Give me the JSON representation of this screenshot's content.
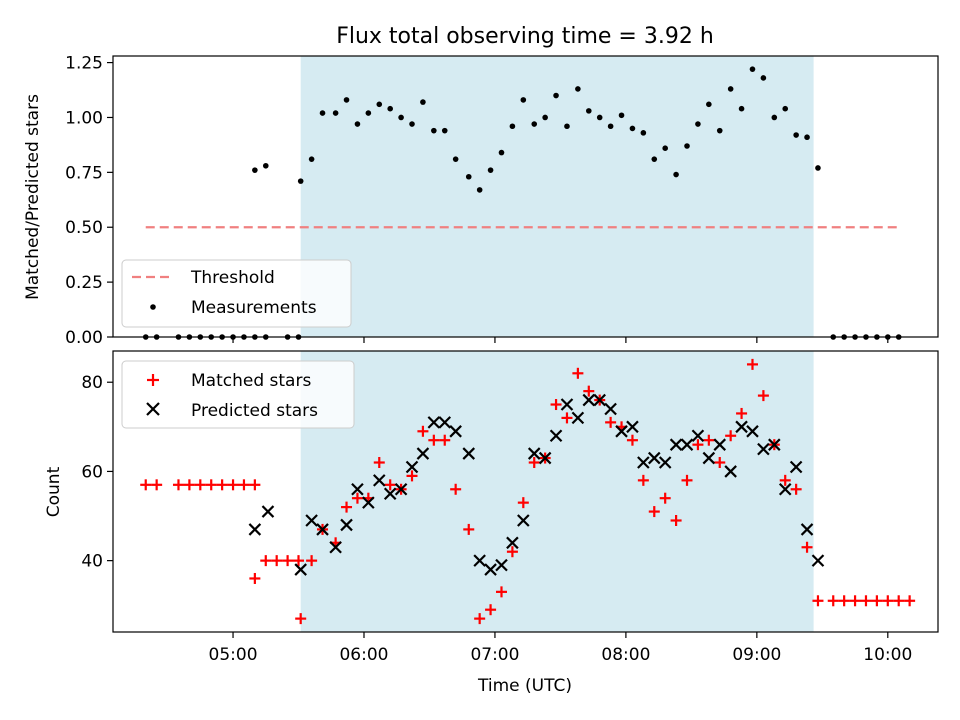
{
  "chart_data": [
    {
      "type": "scatter",
      "title": "Flux total observing time = 3.92 h",
      "xlabel": "",
      "ylabel": "Matched/Predicted stars",
      "ylim": [
        0,
        1.28
      ],
      "yticks": [
        "0.00",
        "0.25",
        "0.50",
        "0.75",
        "1.00",
        "1.25"
      ],
      "ytick_values": [
        0,
        0.25,
        0.5,
        0.75,
        1.0,
        1.25
      ],
      "xlim": [
        "04:05",
        "10:23"
      ],
      "shaded_interval": [
        "05:31",
        "09:26"
      ],
      "legend_location": "lower-left",
      "threshold": {
        "name": "Threshold",
        "value": 0.5,
        "x": [
          "04:20",
          "10:05"
        ],
        "color": "#f08080"
      },
      "series": [
        {
          "name": "Measurements",
          "color": "#000000",
          "points": [
            [
              "04:20",
              0
            ],
            [
              "04:25",
              0
            ],
            [
              "04:35",
              0
            ],
            [
              "04:40",
              0
            ],
            [
              "04:45",
              0
            ],
            [
              "04:50",
              0
            ],
            [
              "04:55",
              0
            ],
            [
              "05:00",
              0
            ],
            [
              "05:05",
              0
            ],
            [
              "05:10",
              0
            ],
            [
              "05:15",
              0
            ],
            [
              "05:25",
              0
            ],
            [
              "05:30",
              0
            ],
            [
              "05:10",
              0.76
            ],
            [
              "05:15",
              0.78
            ],
            [
              "05:31",
              0.71
            ],
            [
              "05:36",
              0.81
            ],
            [
              "05:41",
              1.02
            ],
            [
              "05:47",
              1.02
            ],
            [
              "05:52",
              1.08
            ],
            [
              "05:57",
              0.97
            ],
            [
              "06:02",
              1.02
            ],
            [
              "06:07",
              1.06
            ],
            [
              "06:12",
              1.04
            ],
            [
              "06:17",
              1.0
            ],
            [
              "06:22",
              0.97
            ],
            [
              "06:27",
              1.07
            ],
            [
              "06:32",
              0.94
            ],
            [
              "06:37",
              0.94
            ],
            [
              "06:42",
              0.81
            ],
            [
              "06:48",
              0.73
            ],
            [
              "06:53",
              0.67
            ],
            [
              "06:58",
              0.76
            ],
            [
              "07:03",
              0.84
            ],
            [
              "07:08",
              0.96
            ],
            [
              "07:13",
              1.08
            ],
            [
              "07:18",
              0.97
            ],
            [
              "07:23",
              1.0
            ],
            [
              "07:28",
              1.1
            ],
            [
              "07:33",
              0.96
            ],
            [
              "07:38",
              1.13
            ],
            [
              "07:43",
              1.03
            ],
            [
              "07:48",
              1.0
            ],
            [
              "07:53",
              0.96
            ],
            [
              "07:58",
              1.01
            ],
            [
              "08:03",
              0.95
            ],
            [
              "08:08",
              0.93
            ],
            [
              "08:13",
              0.81
            ],
            [
              "08:18",
              0.86
            ],
            [
              "08:23",
              0.74
            ],
            [
              "08:28",
              0.87
            ],
            [
              "08:33",
              0.97
            ],
            [
              "08:38",
              1.06
            ],
            [
              "08:43",
              0.94
            ],
            [
              "08:48",
              1.13
            ],
            [
              "08:53",
              1.04
            ],
            [
              "08:58",
              1.22
            ],
            [
              "09:03",
              1.18
            ],
            [
              "09:08",
              1.0
            ],
            [
              "09:13",
              1.04
            ],
            [
              "09:18",
              0.92
            ],
            [
              "09:23",
              0.91
            ],
            [
              "09:28",
              0.77
            ],
            [
              "09:35",
              0
            ],
            [
              "09:40",
              0
            ],
            [
              "09:45",
              0
            ],
            [
              "09:50",
              0
            ],
            [
              "09:55",
              0
            ],
            [
              "10:00",
              0
            ],
            [
              "10:05",
              0
            ]
          ]
        }
      ]
    },
    {
      "type": "scatter",
      "title": "",
      "xlabel": "Time (UTC)",
      "ylabel": "Count",
      "ylim": [
        24,
        87
      ],
      "yticks": [
        "40",
        "60",
        "80"
      ],
      "ytick_values": [
        40,
        60,
        80
      ],
      "xlim": [
        "04:05",
        "10:23"
      ],
      "xticks": [
        "05:00",
        "06:00",
        "07:00",
        "08:00",
        "09:00",
        "10:00"
      ],
      "shaded_interval": [
        "05:31",
        "09:26"
      ],
      "legend_location": "upper-left",
      "series": [
        {
          "name": "Matched stars",
          "color": "#ff0000",
          "marker": "plus",
          "points": [
            [
              "04:20",
              57
            ],
            [
              "04:25",
              57
            ],
            [
              "04:35",
              57
            ],
            [
              "04:40",
              57
            ],
            [
              "04:45",
              57
            ],
            [
              "04:50",
              57
            ],
            [
              "04:55",
              57
            ],
            [
              "05:00",
              57
            ],
            [
              "05:05",
              57
            ],
            [
              "05:10",
              57
            ],
            [
              "05:10",
              36
            ],
            [
              "05:15",
              40
            ],
            [
              "05:20",
              40
            ],
            [
              "05:25",
              40
            ],
            [
              "05:30",
              40
            ],
            [
              "05:31",
              27
            ],
            [
              "05:36",
              40
            ],
            [
              "05:41",
              47
            ],
            [
              "05:47",
              44
            ],
            [
              "05:52",
              52
            ],
            [
              "05:57",
              54
            ],
            [
              "06:02",
              54
            ],
            [
              "06:07",
              62
            ],
            [
              "06:12",
              57
            ],
            [
              "06:17",
              56
            ],
            [
              "06:22",
              59
            ],
            [
              "06:27",
              69
            ],
            [
              "06:32",
              67
            ],
            [
              "06:37",
              67
            ],
            [
              "06:42",
              56
            ],
            [
              "06:48",
              47
            ],
            [
              "06:53",
              27
            ],
            [
              "06:58",
              29
            ],
            [
              "07:03",
              33
            ],
            [
              "07:08",
              42
            ],
            [
              "07:13",
              53
            ],
            [
              "07:18",
              62
            ],
            [
              "07:23",
              63
            ],
            [
              "07:28",
              75
            ],
            [
              "07:33",
              72
            ],
            [
              "07:38",
              82
            ],
            [
              "07:43",
              78
            ],
            [
              "07:48",
              76
            ],
            [
              "07:53",
              71
            ],
            [
              "07:58",
              70
            ],
            [
              "08:03",
              67
            ],
            [
              "08:08",
              58
            ],
            [
              "08:13",
              51
            ],
            [
              "08:18",
              54
            ],
            [
              "08:23",
              49
            ],
            [
              "08:28",
              58
            ],
            [
              "08:33",
              66
            ],
            [
              "08:38",
              67
            ],
            [
              "08:43",
              62
            ],
            [
              "08:48",
              68
            ],
            [
              "08:53",
              73
            ],
            [
              "08:58",
              84
            ],
            [
              "09:03",
              77
            ],
            [
              "09:08",
              66
            ],
            [
              "09:13",
              58
            ],
            [
              "09:18",
              56
            ],
            [
              "09:23",
              43
            ],
            [
              "09:28",
              31
            ],
            [
              "09:35",
              31
            ],
            [
              "09:40",
              31
            ],
            [
              "09:45",
              31
            ],
            [
              "09:50",
              31
            ],
            [
              "09:55",
              31
            ],
            [
              "10:00",
              31
            ],
            [
              "10:05",
              31
            ],
            [
              "10:10",
              31
            ]
          ]
        },
        {
          "name": "Predicted stars",
          "color": "#000000",
          "marker": "x",
          "points": [
            [
              "05:10",
              47
            ],
            [
              "05:16",
              51
            ],
            [
              "05:31",
              38
            ],
            [
              "05:36",
              49
            ],
            [
              "05:41",
              47
            ],
            [
              "05:47",
              43
            ],
            [
              "05:52",
              48
            ],
            [
              "05:57",
              56
            ],
            [
              "06:02",
              53
            ],
            [
              "06:07",
              58
            ],
            [
              "06:12",
              55
            ],
            [
              "06:17",
              56
            ],
            [
              "06:22",
              61
            ],
            [
              "06:27",
              64
            ],
            [
              "06:32",
              71
            ],
            [
              "06:37",
              71
            ],
            [
              "06:42",
              69
            ],
            [
              "06:48",
              64
            ],
            [
              "06:53",
              40
            ],
            [
              "06:58",
              38
            ],
            [
              "07:03",
              39
            ],
            [
              "07:08",
              44
            ],
            [
              "07:13",
              49
            ],
            [
              "07:18",
              64
            ],
            [
              "07:23",
              63
            ],
            [
              "07:28",
              68
            ],
            [
              "07:33",
              75
            ],
            [
              "07:38",
              72
            ],
            [
              "07:43",
              76
            ],
            [
              "07:48",
              76
            ],
            [
              "07:53",
              74
            ],
            [
              "07:58",
              69
            ],
            [
              "08:03",
              70
            ],
            [
              "08:08",
              62
            ],
            [
              "08:13",
              63
            ],
            [
              "08:18",
              62
            ],
            [
              "08:23",
              66
            ],
            [
              "08:28",
              66
            ],
            [
              "08:33",
              68
            ],
            [
              "08:38",
              63
            ],
            [
              "08:43",
              66
            ],
            [
              "08:48",
              60
            ],
            [
              "08:53",
              70
            ],
            [
              "08:58",
              69
            ],
            [
              "09:03",
              65
            ],
            [
              "09:08",
              66
            ],
            [
              "09:13",
              56
            ],
            [
              "09:18",
              61
            ],
            [
              "09:23",
              47
            ],
            [
              "09:28",
              40
            ]
          ]
        }
      ]
    }
  ]
}
